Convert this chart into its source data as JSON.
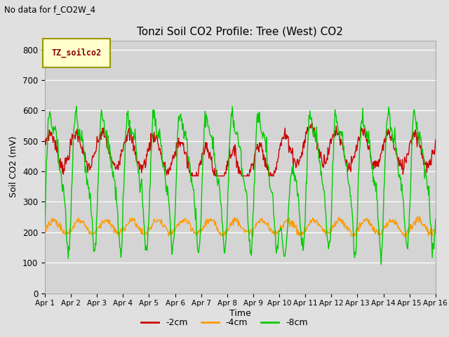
{
  "title": "Tonzi Soil CO2 Profile: Tree (West) CO2",
  "subtitle": "No data for f_CO2W_4",
  "xlabel": "Time",
  "ylabel": "Soil CO2 (mV)",
  "ylim": [
    0,
    830
  ],
  "yticks": [
    0,
    100,
    200,
    300,
    400,
    500,
    600,
    700,
    800
  ],
  "xtick_labels": [
    "Apr 1",
    "Apr 2",
    "Apr 3",
    "Apr 4",
    "Apr 5",
    "Apr 6",
    "Apr 7",
    "Apr 8",
    "Apr 9",
    "Apr 10",
    "Apr 11",
    "Apr 12",
    "Apr 13",
    "Apr 14",
    "Apr 15",
    "Apr 16"
  ],
  "legend_label": "TZ_soilco2",
  "series_labels": [
    "-2cm",
    "-4cm",
    "-8cm"
  ],
  "series_colors": [
    "#cc0000",
    "#ff9900",
    "#00cc00"
  ],
  "fig_facecolor": "#e0e0e0",
  "plot_bg_color": "#d4d4d4",
  "grid_color": "#ffffff",
  "n_points": 720
}
